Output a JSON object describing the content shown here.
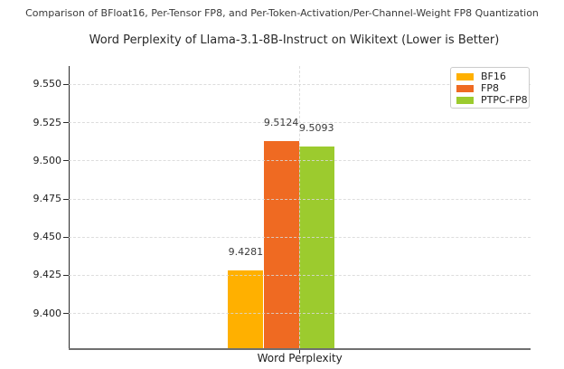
{
  "suptitle": "Comparison of BFloat16, Per-Tensor FP8, and Per-Token-Activation/Per-Channel-Weight FP8 Quantization",
  "chart_data": {
    "type": "bar",
    "title": "Word Perplexity of Llama-3.1-8B-Instruct on Wikitext (Lower is Better)",
    "categories": [
      "Word Perplexity"
    ],
    "series": [
      {
        "name": "BF16",
        "values": [
          9.4281
        ],
        "color": "#FFB000"
      },
      {
        "name": "FP8",
        "values": [
          9.5124
        ],
        "color": "#EF6A22"
      },
      {
        "name": "PTPC-FP8",
        "values": [
          9.5093
        ],
        "color": "#9CCB2E"
      }
    ],
    "value_labels": [
      "9.4281",
      "9.5124",
      "9.5093"
    ],
    "xlabel": "Word Perplexity",
    "ylabel": "",
    "ylim": [
      9.377,
      9.5618
    ],
    "yticks": [
      9.4,
      9.425,
      9.45,
      9.475,
      9.5,
      9.525,
      9.55
    ],
    "ytick_labels": [
      "9.400",
      "9.425",
      "9.450",
      "9.475",
      "9.500",
      "9.525",
      "9.550"
    ],
    "grid": true,
    "grid_style": "dashed",
    "legend_position": "upper right",
    "legend": [
      "BF16",
      "FP8",
      "PTPC-FP8"
    ]
  }
}
